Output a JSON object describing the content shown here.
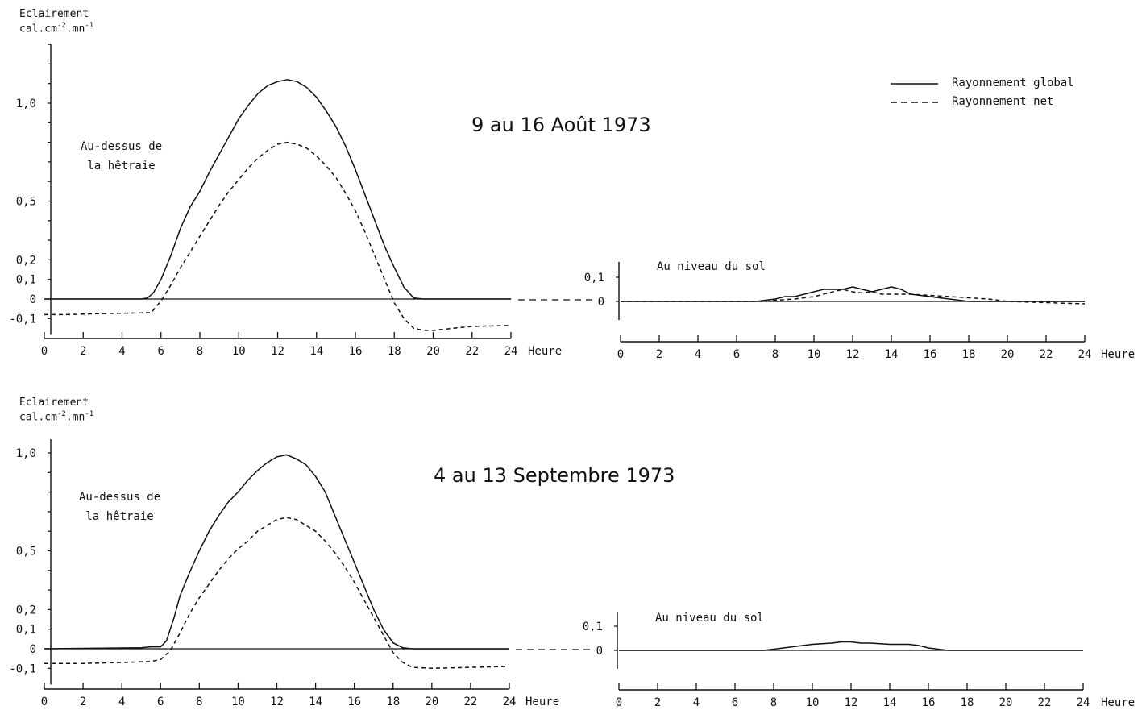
{
  "y_axis_label": {
    "line1": "Eclairement",
    "line2_base": "cal.cm",
    "line2_exp1": "-2",
    "line2_mid": ".mn",
    "line2_exp2": "-1"
  },
  "legend": {
    "global": "Rayonnement  global",
    "net": "Rayonnement  net"
  },
  "x_unit": "Heure",
  "chart_data": [
    {
      "type": "line",
      "title": "9  au  16 Août  1973",
      "annotation": [
        "Au-dessus de",
        "la hêtraie"
      ],
      "ylabel": "Eclairement cal.cm-2.mn-1",
      "xlabel": "Heure",
      "xlim": [
        0,
        24
      ],
      "ylim": [
        -0.15,
        1.3
      ],
      "xticks": [
        "0",
        "2",
        "4",
        "6",
        "8",
        "10",
        "12",
        "14",
        "16",
        "18",
        "20",
        "22",
        "24"
      ],
      "yticks": [
        {
          "v": 1.0,
          "t": "1,0"
        },
        {
          "v": 0.5,
          "t": "0,5"
        },
        {
          "v": 0.2,
          "t": "0,2"
        },
        {
          "v": 0.1,
          "t": "0,1"
        },
        {
          "v": 0,
          "t": "0"
        },
        {
          "v": -0.1,
          "t": "-0,1"
        }
      ],
      "series": [
        {
          "name": "Rayonnement global",
          "style": "solid",
          "x": [
            0,
            5,
            5.3,
            5.6,
            6,
            6.5,
            7,
            7.5,
            8,
            8.5,
            9,
            9.5,
            10,
            10.5,
            11,
            11.5,
            12,
            12.5,
            13,
            13.5,
            14,
            14.5,
            15,
            15.5,
            16,
            16.5,
            17,
            17.5,
            18,
            18.5,
            19,
            19.5,
            20,
            24
          ],
          "y": [
            0,
            0,
            0.005,
            0.03,
            0.1,
            0.22,
            0.36,
            0.47,
            0.55,
            0.65,
            0.74,
            0.83,
            0.92,
            0.99,
            1.05,
            1.09,
            1.11,
            1.12,
            1.11,
            1.08,
            1.03,
            0.96,
            0.88,
            0.78,
            0.66,
            0.53,
            0.4,
            0.27,
            0.16,
            0.06,
            0.005,
            0,
            0,
            0
          ]
        },
        {
          "name": "Rayonnement net",
          "style": "dashed",
          "x": [
            0,
            1,
            3,
            5.5,
            6,
            6.5,
            7,
            7.5,
            8,
            8.5,
            9,
            9.5,
            10,
            10.5,
            11,
            11.5,
            12,
            12.5,
            13,
            13.5,
            14,
            14.5,
            15,
            15.5,
            16,
            16.5,
            17,
            17.5,
            18,
            18.5,
            19,
            19.5,
            20,
            21,
            22,
            24
          ],
          "y": [
            -0.08,
            -0.08,
            -0.075,
            -0.07,
            -0.01,
            0.07,
            0.16,
            0.24,
            0.32,
            0.4,
            0.48,
            0.55,
            0.61,
            0.67,
            0.72,
            0.76,
            0.79,
            0.8,
            0.79,
            0.77,
            0.73,
            0.68,
            0.62,
            0.54,
            0.45,
            0.34,
            0.22,
            0.1,
            -0.02,
            -0.1,
            -0.15,
            -0.16,
            -0.16,
            -0.15,
            -0.14,
            -0.135
          ]
        }
      ]
    },
    {
      "type": "line",
      "annotation": "Au niveau du sol",
      "xlabel": "Heure",
      "xlim": [
        0,
        24
      ],
      "ylim": [
        -0.05,
        0.25
      ],
      "xticks": [
        "0",
        "2",
        "4",
        "6",
        "8",
        "10",
        "12",
        "14",
        "16",
        "18",
        "20",
        "22",
        "24"
      ],
      "yticks": [
        {
          "v": 0.1,
          "t": "0,1"
        },
        {
          "v": 0,
          "t": "0"
        }
      ],
      "series": [
        {
          "name": "Rayonnement global",
          "style": "solid",
          "x": [
            0,
            7,
            8,
            8.5,
            9,
            10,
            10.5,
            11,
            11.5,
            12,
            12.5,
            13,
            13.5,
            14,
            14.5,
            15,
            16,
            17,
            18,
            20,
            24
          ],
          "y": [
            0,
            0,
            0.01,
            0.02,
            0.02,
            0.04,
            0.05,
            0.05,
            0.05,
            0.06,
            0.05,
            0.04,
            0.05,
            0.06,
            0.05,
            0.03,
            0.02,
            0.01,
            0,
            0,
            0
          ]
        },
        {
          "name": "Rayonnement net",
          "style": "dashed",
          "x": [
            0,
            7.5,
            8,
            9,
            10,
            11,
            11.5,
            12,
            12.5,
            13,
            13.5,
            14,
            15,
            16,
            17,
            18,
            19,
            20,
            24
          ],
          "y": [
            0,
            0,
            0.005,
            0.01,
            0.02,
            0.04,
            0.05,
            0.04,
            0.035,
            0.04,
            0.03,
            0.03,
            0.03,
            0.025,
            0.02,
            0.015,
            0.01,
            0,
            -0.01
          ]
        }
      ]
    },
    {
      "type": "line",
      "title": "4  au  13 Septembre 1973",
      "annotation": [
        "Au-dessus  de",
        "la  hêtraie"
      ],
      "ylabel": "Eclairement cal.cm-2.mn-1",
      "xlabel": "Heure",
      "xlim": [
        0,
        24
      ],
      "ylim": [
        -0.15,
        1.1
      ],
      "xticks": [
        "0",
        "2",
        "4",
        "6",
        "8",
        "10",
        "12",
        "14",
        "16",
        "18",
        "20",
        "22",
        "24"
      ],
      "yticks": [
        {
          "v": 1.0,
          "t": "1,0"
        },
        {
          "v": 0.5,
          "t": "0,5"
        },
        {
          "v": 0.2,
          "t": "0,2"
        },
        {
          "v": 0.1,
          "t": "0,1"
        },
        {
          "v": 0,
          "t": "0"
        },
        {
          "v": -0.1,
          "t": "-0,1"
        }
      ],
      "series": [
        {
          "name": "Rayonnement global",
          "style": "solid",
          "x": [
            0,
            5,
            5.5,
            6,
            6.3,
            6.7,
            7,
            7.5,
            8,
            8.5,
            9,
            9.5,
            10,
            10.5,
            11,
            11.5,
            12,
            12.5,
            13,
            13.5,
            14,
            14.5,
            15,
            15.5,
            16,
            16.5,
            17,
            17.5,
            18,
            18.5,
            19,
            24
          ],
          "y": [
            0,
            0.005,
            0.01,
            0.01,
            0.04,
            0.16,
            0.27,
            0.39,
            0.5,
            0.6,
            0.68,
            0.75,
            0.8,
            0.86,
            0.91,
            0.95,
            0.98,
            0.99,
            0.97,
            0.94,
            0.88,
            0.8,
            0.68,
            0.56,
            0.44,
            0.32,
            0.2,
            0.1,
            0.03,
            0.005,
            0,
            0
          ]
        },
        {
          "name": "Rayonnement net",
          "style": "dashed",
          "x": [
            0,
            2,
            4,
            5.5,
            6,
            6.5,
            7,
            7.5,
            8,
            8.5,
            9,
            9.5,
            10,
            10.5,
            11,
            11.5,
            12,
            12.5,
            13,
            13.5,
            14,
            14.5,
            15,
            15.5,
            16,
            16.5,
            17,
            17.5,
            18,
            18.5,
            19,
            20,
            22,
            24
          ],
          "y": [
            -0.075,
            -0.075,
            -0.07,
            -0.065,
            -0.055,
            -0.01,
            0.08,
            0.18,
            0.26,
            0.33,
            0.4,
            0.46,
            0.51,
            0.55,
            0.6,
            0.63,
            0.66,
            0.67,
            0.66,
            0.63,
            0.6,
            0.55,
            0.49,
            0.42,
            0.34,
            0.25,
            0.16,
            0.07,
            -0.02,
            -0.07,
            -0.095,
            -0.1,
            -0.095,
            -0.09
          ]
        }
      ]
    },
    {
      "type": "line",
      "annotation": "Au niveau du sol",
      "xlabel": "Heure",
      "xlim": [
        0,
        24
      ],
      "ylim": [
        -0.05,
        0.25
      ],
      "xticks": [
        "0",
        "2",
        "4",
        "6",
        "8",
        "10",
        "12",
        "14",
        "16",
        "18",
        "20",
        "22",
        "24"
      ],
      "yticks": [
        {
          "v": 0.1,
          "t": "0,1"
        },
        {
          "v": 0,
          "t": "0"
        }
      ],
      "series": [
        {
          "name": "Rayonnement global",
          "style": "solid",
          "x": [
            0,
            7.5,
            8,
            9,
            10,
            11,
            11.5,
            12,
            12.5,
            13,
            14,
            15,
            15.5,
            16,
            16.5,
            17,
            18,
            20,
            24
          ],
          "y": [
            0,
            0,
            0.005,
            0.015,
            0.025,
            0.03,
            0.035,
            0.035,
            0.03,
            0.03,
            0.025,
            0.025,
            0.02,
            0.01,
            0.005,
            0,
            0,
            0,
            0
          ]
        }
      ]
    }
  ]
}
